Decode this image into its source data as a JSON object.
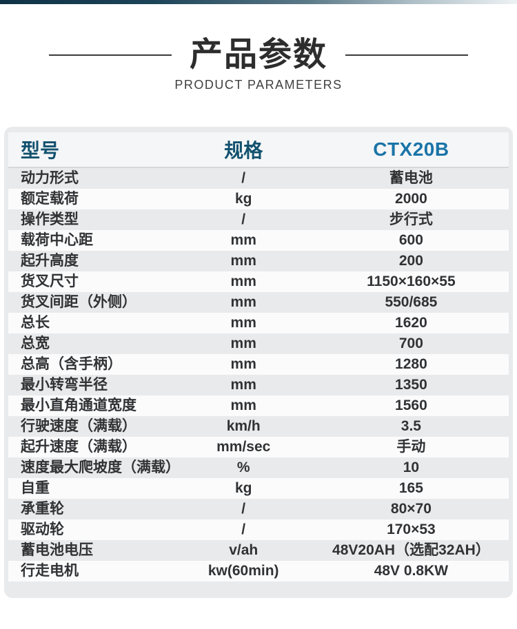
{
  "header": {
    "title_cn": "产品参数",
    "title_en": "PRODUCT PARAMETERS"
  },
  "table": {
    "columns": {
      "model": "型号",
      "spec": "规格",
      "product": "CTX20B"
    },
    "rows": [
      {
        "label": "动力形式",
        "unit": "/",
        "value": "蓄电池"
      },
      {
        "label": "额定载荷",
        "unit": "kg",
        "value": "2000"
      },
      {
        "label": "操作类型",
        "unit": "/",
        "value": "步行式"
      },
      {
        "label": "载荷中心距",
        "unit": "mm",
        "value": "600"
      },
      {
        "label": "起升高度",
        "unit": "mm",
        "value": "200"
      },
      {
        "label": "货叉尺寸",
        "unit": "mm",
        "value": "1150×160×55"
      },
      {
        "label": "货叉间距（外侧）",
        "unit": "mm",
        "value": "550/685"
      },
      {
        "label": "总长",
        "unit": "mm",
        "value": "1620"
      },
      {
        "label": "总宽",
        "unit": "mm",
        "value": "700"
      },
      {
        "label": "总高（含手柄）",
        "unit": "mm",
        "value": "1280"
      },
      {
        "label": "最小转弯半径",
        "unit": "mm",
        "value": "1350"
      },
      {
        "label": "最小直角通道宽度",
        "unit": "mm",
        "value": "1560"
      },
      {
        "label": "行驶速度（满载）",
        "unit": "km/h",
        "value": "3.5"
      },
      {
        "label": "起升速度（满载）",
        "unit": "mm/sec",
        "value": "手动"
      },
      {
        "label": "速度最大爬坡度（满载）",
        "unit": "%",
        "value": "10"
      },
      {
        "label": "自重",
        "unit": "kg",
        "value": "165"
      },
      {
        "label": "承重轮",
        "unit": "/",
        "value": "80×70"
      },
      {
        "label": "驱动轮",
        "unit": "/",
        "value": "170×53"
      },
      {
        "label": "蓄电池电压",
        "unit": "v/ah",
        "value": "48V20AH（选配32AH）"
      },
      {
        "label": "行走电机",
        "unit": "kw(60min)",
        "value": "48V 0.8KW"
      }
    ]
  },
  "colors": {
    "header_text": "#12516f",
    "product_text": "#1a74a8",
    "top_bar_start": "#0f3246",
    "top_bar_end": "#eef2f4",
    "card_bg": "#e9eaeb",
    "stripe_bg": "#fbfbfc"
  }
}
